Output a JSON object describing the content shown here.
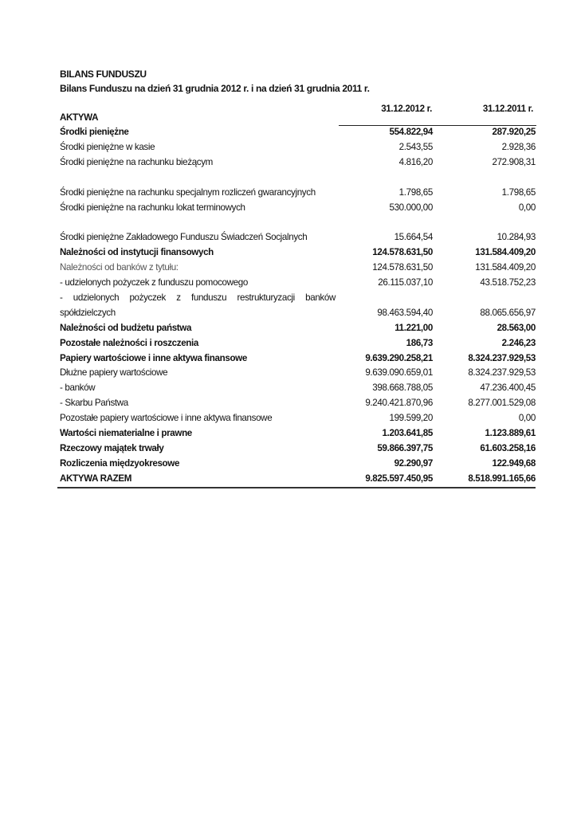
{
  "title": "BILANS FUNDUSZU",
  "subtitle": "Bilans Funduszu na dzień 31 grudnia 2012 r. i na dzień 31 grudnia 2011 r.",
  "section": "AKTYWA",
  "columns": [
    "31.12.2012 r.",
    "31.12.2011 r."
  ],
  "rows": [
    {
      "label": "Środki pieniężne",
      "v2012": "554.822,94",
      "v2011": "287.920,25",
      "bold": true
    },
    {
      "label": "Środki pieniężne w kasie",
      "v2012": "2.543,55",
      "v2011": "2.928,36"
    },
    {
      "label": "Środki pieniężne na rachunku bieżącym",
      "v2012": "4.816,20",
      "v2011": "272.908,31"
    },
    {
      "label": "Środki pieniężne na rachunku specjalnym rozliczeń gwarancyjnych",
      "v2012": "1.798,65",
      "v2011": "1.798,65",
      "wrap": true
    },
    {
      "label": "Środki pieniężne na rachunku lokat terminowych",
      "v2012": "530.000,00",
      "v2011": "0,00"
    },
    {
      "label": "Środki pieniężne Zakładowego Funduszu Świadczeń Socjalnych",
      "v2012": "15.664,54",
      "v2011": "10.284,93",
      "wrap": true
    },
    {
      "label": "Należności od instytucji finansowych",
      "v2012": "124.578.631,50",
      "v2011": "131.584.409,20",
      "bold": true
    },
    {
      "label": "Należności od banków z tytułu:",
      "v2012": "124.578.631,50",
      "v2011": "131.584.409,20",
      "gray": true
    },
    {
      "label": "- udzielonych pożyczek z funduszu pomocowego",
      "v2012": "26.115.037,10",
      "v2011": "43.518.752,23"
    },
    {
      "label": "- udzielonych pożyczek z funduszu restrukturyzacji banków spółdzielczych",
      "v2012": "98.463.594,40",
      "v2011": "88.065.656,97",
      "wrap": true
    },
    {
      "label": "Należności od budżetu państwa",
      "v2012": "11.221,00",
      "v2011": "28.563,00",
      "bold": true
    },
    {
      "label": "Pozostałe należności i roszczenia",
      "v2012": "186,73",
      "v2011": "2.246,23",
      "bold": true
    },
    {
      "label": "Papiery wartościowe i inne aktywa finansowe",
      "v2012": "9.639.290.258,21",
      "v2011": "8.324.237.929,53",
      "bold": true
    },
    {
      "label": "Dłużne papiery wartościowe",
      "v2012": "9.639.090.659,01",
      "v2011": "8.324.237.929,53"
    },
    {
      "label": "- banków",
      "v2012": "398.668.788,05",
      "v2011": "47.236.400,45"
    },
    {
      "label": "- Skarbu Państwa",
      "v2012": "9.240.421.870,96",
      "v2011": "8.277.001.529,08"
    },
    {
      "label": "Pozostałe papiery wartościowe i inne aktywa finansowe",
      "v2012": "199.599,20",
      "v2011": "0,00"
    },
    {
      "label": "Wartości niematerialne i prawne",
      "v2012": "1.203.641,85",
      "v2011": "1.123.889,61",
      "bold": true
    },
    {
      "label": "Rzeczowy majątek trwały",
      "v2012": "59.866.397,75",
      "v2011": "61.603.258,16",
      "bold": true
    },
    {
      "label": "Rozliczenia międzyokresowe",
      "v2012": "92.290,97",
      "v2011": "122.949,68",
      "bold": true
    },
    {
      "label": "AKTYWA RAZEM",
      "v2012": "9.825.597.450,95",
      "v2011": "8.518.991.165,66",
      "bold": true,
      "total": true
    }
  ]
}
